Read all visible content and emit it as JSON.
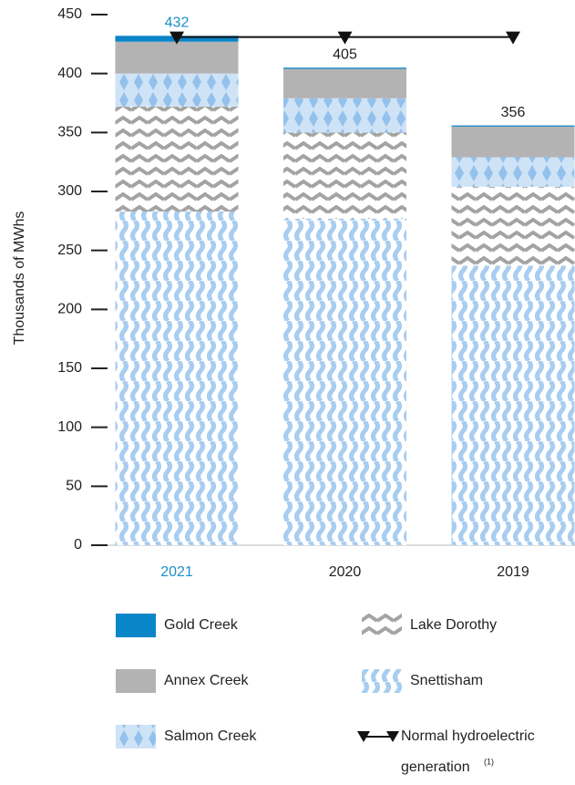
{
  "chart_data": {
    "type": "stacked_bar",
    "y_label": "Thousands of MWhs",
    "categories": [
      "2021",
      "2020",
      "2019"
    ],
    "label_colors": [
      "#1a8fc9",
      "#222222",
      "#222222"
    ],
    "series": [
      {
        "name": "Gold Creek",
        "color": "#0a85c7",
        "pattern": "solid",
        "values": [
          5,
          1,
          1
        ]
      },
      {
        "name": "Annex Creek",
        "color": "#b3b3b3",
        "pattern": "solid",
        "values": [
          27,
          25,
          26
        ]
      },
      {
        "name": "Salmon Creek",
        "color": "#a8cdf0",
        "pattern": "diamond",
        "values": [
          28,
          29,
          25
        ]
      },
      {
        "name": "Lake Dorothy",
        "color": "#a3a3a3",
        "pattern": "zigzag",
        "values": [
          89,
          73,
          67
        ]
      },
      {
        "name": "Snettisham",
        "color": "#a8cdf0",
        "pattern": "wave",
        "values": [
          283,
          277,
          237
        ]
      }
    ],
    "totals": [
      432,
      405,
      356
    ],
    "line_series": {
      "name": "Normal hydroelectric generation",
      "footnote_marker": "(1)",
      "color": "#111111",
      "values": [
        431,
        431,
        431
      ]
    },
    "ylim": [
      0,
      450
    ],
    "yticks": [
      0,
      50,
      100,
      150,
      200,
      250,
      300,
      350,
      400,
      450
    ]
  }
}
